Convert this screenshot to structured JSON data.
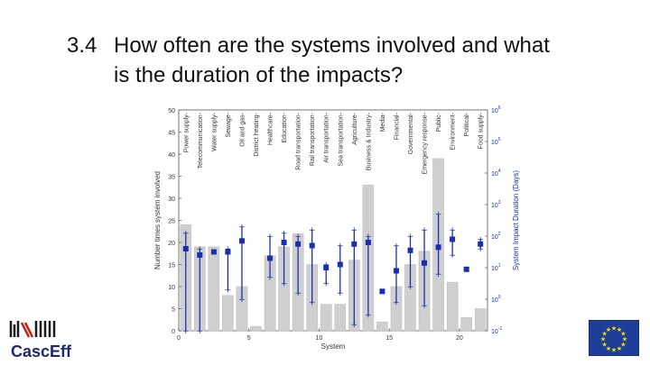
{
  "slide": {
    "number": "3.4",
    "title_line1": "How often are the systems involved and what",
    "title_line2": "is the duration of the impacts?"
  },
  "logo": {
    "name": "CascEff"
  },
  "chart_data": {
    "type": "bar",
    "title": "",
    "xlabel": "System",
    "ylabel": "Number times system involved",
    "y2label": "System Impact Duration (Days)",
    "xlim": [
      0,
      22
    ],
    "ylim": [
      0,
      50
    ],
    "xticks": [
      0,
      5,
      10,
      15,
      20
    ],
    "yticks": [
      0,
      5,
      10,
      15,
      20,
      25,
      30,
      35,
      40,
      45,
      50
    ],
    "y2ticks": [
      "10^-1",
      "10^0",
      "10^1",
      "10^2",
      "10^3",
      "10^4",
      "10^5",
      "10^6"
    ],
    "categories": [
      "Power supply",
      "Telecommunication",
      "Water supply",
      "Sewage",
      "Oil and gas",
      "District heating",
      "Healthcare",
      "Education",
      "Road transportation",
      "Rail transportation",
      "Air transportation",
      "Sea transportation",
      "Agriculture",
      "Business & Industry",
      "Media",
      "Financial",
      "Governmental",
      "Emergency response",
      "Public",
      "Environment",
      "Political",
      "Food supply"
    ],
    "series": [
      {
        "name": "Number times system involved",
        "values": [
          24,
          19,
          19,
          8,
          10,
          1,
          17,
          19,
          22,
          15,
          6,
          6,
          16,
          33,
          2,
          10,
          15,
          18,
          39,
          11,
          3,
          5
        ]
      },
      {
        "name": "Impact duration (Days, log10)",
        "mean": [
          1.6,
          1.4,
          1.5,
          1.5,
          1.85,
          null,
          1.3,
          1.8,
          1.75,
          1.7,
          1.0,
          1.1,
          1.75,
          1.8,
          0.25,
          0.9,
          1.55,
          1.15,
          1.65,
          1.9,
          0.95,
          1.75
        ],
        "low": [
          -1.0,
          -1.0,
          null,
          0.3,
          0.0,
          null,
          0.7,
          0.5,
          0.2,
          -0.1,
          0.5,
          0.2,
          -0.8,
          -0.5,
          null,
          -0.1,
          0.4,
          -0.2,
          0.8,
          1.4,
          null,
          1.6
        ],
        "high": [
          2.1,
          1.6,
          null,
          1.6,
          2.3,
          null,
          2.0,
          2.1,
          2.0,
          2.2,
          1.1,
          1.7,
          2.2,
          2.0,
          null,
          1.7,
          2.0,
          2.2,
          2.7,
          2.2,
          null,
          1.9
        ]
      }
    ]
  }
}
